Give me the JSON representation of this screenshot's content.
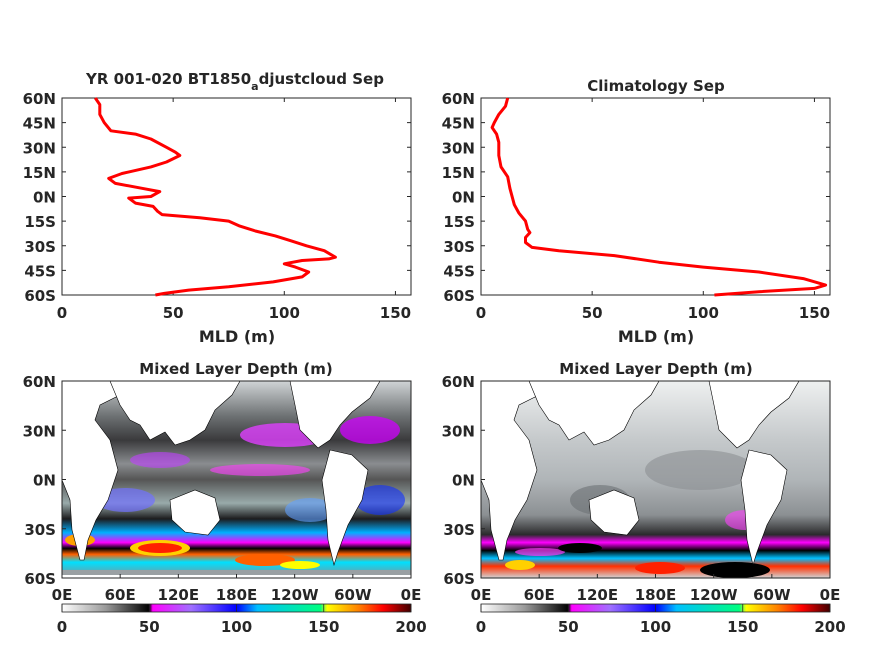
{
  "chart_data": [
    {
      "type": "line",
      "title": "YR 001-020 BT1850_adjustcloud Sep",
      "title_main": "YR 001-020 BT1850",
      "title_sub": "a",
      "title_rest": "djustcloud Sep",
      "xlabel": "MLD (m)",
      "ylabel": "",
      "xlim": [
        0,
        157
      ],
      "ylim": [
        -60,
        60
      ],
      "xticks": [
        "0",
        "50",
        "100",
        "150"
      ],
      "yticks": [
        "60N",
        "45N",
        "30N",
        "15N",
        "0N",
        "15S",
        "30S",
        "45S",
        "60S"
      ],
      "series": [
        {
          "color": "#ff0000",
          "points": [
            {
              "x": 15,
              "y": 60
            },
            {
              "x": 17,
              "y": 56
            },
            {
              "x": 17,
              "y": 50
            },
            {
              "x": 19,
              "y": 45
            },
            {
              "x": 22,
              "y": 40
            },
            {
              "x": 33,
              "y": 38
            },
            {
              "x": 40,
              "y": 35
            },
            {
              "x": 47,
              "y": 30
            },
            {
              "x": 51,
              "y": 27
            },
            {
              "x": 53,
              "y": 25
            },
            {
              "x": 47,
              "y": 21
            },
            {
              "x": 40,
              "y": 18
            },
            {
              "x": 27,
              "y": 14
            },
            {
              "x": 21,
              "y": 11
            },
            {
              "x": 24,
              "y": 8
            },
            {
              "x": 36,
              "y": 5
            },
            {
              "x": 44,
              "y": 3
            },
            {
              "x": 40,
              "y": 0
            },
            {
              "x": 30,
              "y": -1
            },
            {
              "x": 33,
              "y": -4
            },
            {
              "x": 41,
              "y": -6
            },
            {
              "x": 43,
              "y": -9
            },
            {
              "x": 45,
              "y": -11
            },
            {
              "x": 62,
              "y": -13
            },
            {
              "x": 75,
              "y": -15
            },
            {
              "x": 80,
              "y": -18
            },
            {
              "x": 87,
              "y": -21
            },
            {
              "x": 96,
              "y": -24
            },
            {
              "x": 103,
              "y": -27
            },
            {
              "x": 110,
              "y": -30
            },
            {
              "x": 118,
              "y": -33
            },
            {
              "x": 123,
              "y": -37
            },
            {
              "x": 120,
              "y": -38
            },
            {
              "x": 108,
              "y": -39
            },
            {
              "x": 100,
              "y": -41
            },
            {
              "x": 105,
              "y": -43
            },
            {
              "x": 111,
              "y": -46
            },
            {
              "x": 108,
              "y": -49
            },
            {
              "x": 95,
              "y": -52
            },
            {
              "x": 75,
              "y": -55
            },
            {
              "x": 57,
              "y": -57
            },
            {
              "x": 46,
              "y": -59
            },
            {
              "x": 42,
              "y": -60
            }
          ]
        }
      ]
    },
    {
      "type": "line",
      "title": "Climatology Sep",
      "xlabel": "MLD (m)",
      "ylabel": "",
      "xlim": [
        0,
        157
      ],
      "ylim": [
        -60,
        60
      ],
      "xticks": [
        "0",
        "50",
        "100",
        "150"
      ],
      "yticks": [
        "60N",
        "45N",
        "30N",
        "15N",
        "0N",
        "15S",
        "30S",
        "45S",
        "60S"
      ],
      "series": [
        {
          "color": "#ff0000",
          "points": [
            {
              "x": 12,
              "y": 60
            },
            {
              "x": 11,
              "y": 55
            },
            {
              "x": 8,
              "y": 50
            },
            {
              "x": 6,
              "y": 45
            },
            {
              "x": 5,
              "y": 42
            },
            {
              "x": 7,
              "y": 38
            },
            {
              "x": 8,
              "y": 33
            },
            {
              "x": 8,
              "y": 25
            },
            {
              "x": 9,
              "y": 18
            },
            {
              "x": 12,
              "y": 12
            },
            {
              "x": 13,
              "y": 5
            },
            {
              "x": 14,
              "y": 0
            },
            {
              "x": 15,
              "y": -5
            },
            {
              "x": 17,
              "y": -10
            },
            {
              "x": 20,
              "y": -15
            },
            {
              "x": 21,
              "y": -20
            },
            {
              "x": 22,
              "y": -22
            },
            {
              "x": 20,
              "y": -25
            },
            {
              "x": 20,
              "y": -28
            },
            {
              "x": 23,
              "y": -31
            },
            {
              "x": 35,
              "y": -33
            },
            {
              "x": 60,
              "y": -36
            },
            {
              "x": 80,
              "y": -40
            },
            {
              "x": 100,
              "y": -43
            },
            {
              "x": 125,
              "y": -46
            },
            {
              "x": 145,
              "y": -50
            },
            {
              "x": 155,
              "y": -54
            },
            {
              "x": 150,
              "y": -56
            },
            {
              "x": 125,
              "y": -58
            },
            {
              "x": 105,
              "y": -60
            }
          ]
        }
      ]
    },
    {
      "type": "heatmap",
      "title": "Mixed Layer Depth (m)",
      "yticks": [
        "60N",
        "30N",
        "0N",
        "30S",
        "60S"
      ],
      "xticks": [
        "0E",
        "60E",
        "120E",
        "180E",
        "120W",
        "60W",
        "0E"
      ],
      "colorbar_ticks": [
        "0",
        "50",
        "100",
        "150",
        "200"
      ],
      "colorbar_range": [
        0,
        200
      ]
    },
    {
      "type": "heatmap",
      "title": "Mixed Layer Depth (m)",
      "yticks": [
        "60N",
        "30N",
        "0N",
        "30S",
        "60S"
      ],
      "xticks": [
        "0E",
        "60E",
        "120E",
        "180E",
        "120W",
        "60W",
        "0E"
      ],
      "colorbar_ticks": [
        "0",
        "50",
        "100",
        "150",
        "200"
      ],
      "colorbar_range": [
        0,
        200
      ]
    }
  ],
  "colors": {
    "line": "#ff0000",
    "colormap": [
      "#ffffff",
      "#9a9a9a",
      "#000000",
      "#ff00ff",
      "#7a7aff",
      "#0000ff",
      "#00d0ff",
      "#00ff80",
      "#ffff00",
      "#ff8000",
      "#ff0000",
      "#500000"
    ]
  }
}
